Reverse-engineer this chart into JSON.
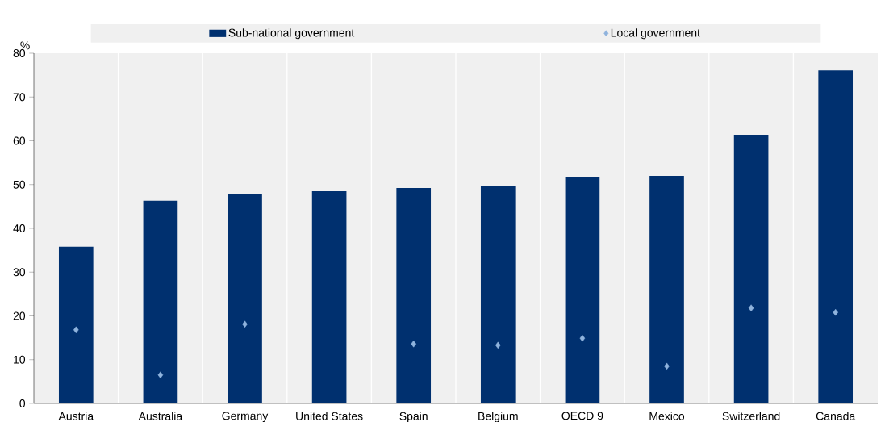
{
  "chart_data": {
    "type": "bar",
    "ylabel": "%",
    "categories": [
      "Austria",
      "Australia",
      "Germany",
      "United States",
      "Spain",
      "Belgium",
      "OECD 9",
      "Mexico",
      "Switzerland",
      "Canada"
    ],
    "series": [
      {
        "name": "Sub-national government",
        "color": "#00306f",
        "values": [
          35.8,
          46.3,
          47.9,
          48.5,
          49.2,
          49.6,
          51.8,
          52.0,
          61.4,
          76.1
        ]
      },
      {
        "name": "Local government",
        "type": "scatter",
        "marker": "diamond",
        "color": "#8fb3dd",
        "values": [
          16.8,
          6.5,
          18.1,
          null,
          13.6,
          13.3,
          14.9,
          8.5,
          21.8,
          20.8
        ]
      }
    ],
    "ylim": [
      0,
      80
    ],
    "yticks": [
      0,
      10,
      20,
      30,
      40,
      50,
      60,
      70,
      80
    ],
    "grid": "x",
    "legend": "top"
  }
}
